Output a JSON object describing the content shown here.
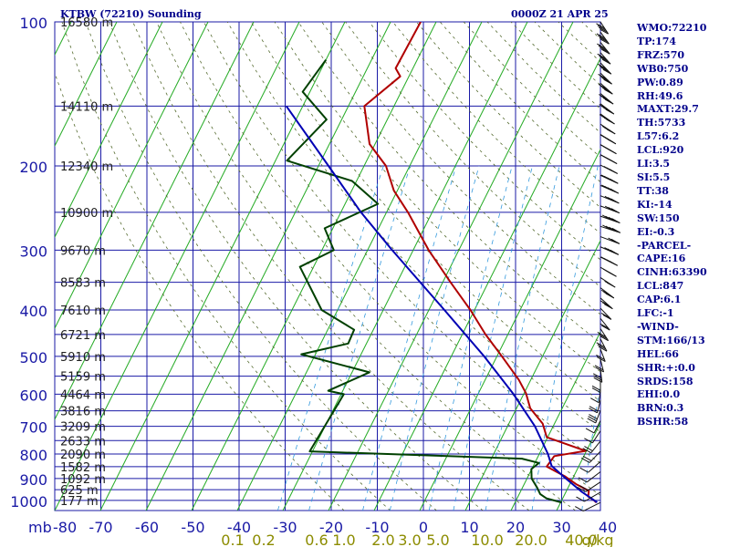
{
  "header": {
    "station_title": "KTBW (72210) Sounding",
    "time_title": "0000Z 21 APR 25"
  },
  "chart_data": {
    "type": "skew-t log-p sounding",
    "x_axis_unit": "C",
    "y_axis_unit": "mb",
    "pressure_ticks": [
      100,
      200,
      300,
      400,
      500,
      600,
      700,
      800,
      900,
      1000
    ],
    "pressure_range": [
      100,
      1050
    ],
    "temperature_ticks": [
      -80,
      -70,
      -60,
      -50,
      -40,
      -30,
      -20,
      -10,
      0,
      10,
      20,
      30,
      40
    ],
    "mixing_ratio_labels": [
      "0.1",
      "0.2",
      "0.6",
      "1.0",
      "2.0",
      "3.0",
      "5.0",
      "10.0",
      "20.0",
      "40.0",
      "g/kg"
    ],
    "height_labels": [
      {
        "p": 100,
        "label": "16580 m"
      },
      {
        "p": 150,
        "label": "14110 m"
      },
      {
        "p": 200,
        "label": "12340 m"
      },
      {
        "p": 250,
        "label": "10900 m"
      },
      {
        "p": 300,
        "label": "9670 m"
      },
      {
        "p": 350,
        "label": "8583 m"
      },
      {
        "p": 400,
        "label": "7610 m"
      },
      {
        "p": 450,
        "label": "6721 m"
      },
      {
        "p": 500,
        "label": "5910 m"
      },
      {
        "p": 550,
        "label": "5159 m"
      },
      {
        "p": 600,
        "label": "4464 m"
      },
      {
        "p": 650,
        "label": "3816 m"
      },
      {
        "p": 700,
        "label": "3209 m"
      },
      {
        "p": 750,
        "label": "2633 m"
      },
      {
        "p": 800,
        "label": "2090 m"
      },
      {
        "p": 850,
        "label": "1582 m"
      },
      {
        "p": 900,
        "label": "1092 m"
      },
      {
        "p": 950,
        "label": "625 m"
      },
      {
        "p": 1000,
        "label": "177 m"
      }
    ],
    "series": [
      {
        "key": "temperature",
        "color": "#b00000",
        "points": [
          [
            1010,
            27.8
          ],
          [
            1000,
            27.1
          ],
          [
            982,
            25.4
          ],
          [
            955,
            24.9
          ],
          [
            925,
            21.4
          ],
          [
            892,
            18.2
          ],
          [
            850,
            13.0
          ],
          [
            808,
            13.5
          ],
          [
            788,
            19.8
          ],
          [
            738,
            9.8
          ],
          [
            691,
            7.4
          ],
          [
            642,
            3.0
          ],
          [
            597,
            0.4
          ],
          [
            560,
            -2.6
          ],
          [
            500,
            -8.9
          ],
          [
            450,
            -14.9
          ],
          [
            400,
            -20.9
          ],
          [
            350,
            -28.3
          ],
          [
            300,
            -36.6
          ],
          [
            250,
            -45.3
          ],
          [
            225,
            -50.8
          ],
          [
            200,
            -55.2
          ],
          [
            180,
            -61.2
          ],
          [
            150,
            -66.5
          ],
          [
            130,
            -61.9
          ],
          [
            125,
            -63.8
          ],
          [
            100,
            -63.4
          ]
        ]
      },
      {
        "key": "dewpoint",
        "color": "#004000",
        "points": [
          [
            1010,
            20.2
          ],
          [
            990,
            16.4
          ],
          [
            970,
            14.6
          ],
          [
            940,
            13.2
          ],
          [
            900,
            11.0
          ],
          [
            860,
            9.9
          ],
          [
            835,
            10.9
          ],
          [
            818,
            6.7
          ],
          [
            790,
            -40.6
          ],
          [
            600,
            -39.4
          ],
          [
            590,
            -43.2
          ],
          [
            540,
            -36.2
          ],
          [
            495,
            -53.1
          ],
          [
            470,
            -44.0
          ],
          [
            440,
            -44.2
          ],
          [
            400,
            -53.5
          ],
          [
            325,
            -63.0
          ],
          [
            300,
            -57.4
          ],
          [
            270,
            -61.8
          ],
          [
            240,
            -52.8
          ],
          [
            215,
            -61.0
          ],
          [
            195,
            -77.5
          ],
          [
            160,
            -73.3
          ],
          [
            140,
            -81.6
          ],
          [
            120,
            -80.0
          ]
        ]
      },
      {
        "key": "parcel",
        "color": "#0000b4",
        "points": [
          [
            1010,
            28.0
          ],
          [
            960,
            23.5
          ],
          [
            900,
            18.5
          ],
          [
            847,
            14.0
          ],
          [
            800,
            11.9
          ],
          [
            700,
            6.0
          ],
          [
            600,
            -2.2
          ],
          [
            500,
            -12.8
          ],
          [
            400,
            -26.6
          ],
          [
            300,
            -44.6
          ],
          [
            250,
            -55.6
          ],
          [
            200,
            -67.8
          ],
          [
            150,
            -83.6
          ]
        ]
      }
    ],
    "wind_barbs": {
      "pressure_min": 100,
      "pressure_max": 1010,
      "count": 48
    }
  },
  "indices": [
    {
      "label": "WMO",
      "value": "72210"
    },
    {
      "label": "TP",
      "value": "174"
    },
    {
      "label": "FRZ",
      "value": "570"
    },
    {
      "label": "WB0",
      "value": "750"
    },
    {
      "label": "PW",
      "value": "0.89"
    },
    {
      "label": "RH",
      "value": "49.6"
    },
    {
      "label": "MAXT",
      "value": "29.7"
    },
    {
      "label": "TH",
      "value": "5733"
    },
    {
      "label": "L57",
      "value": "6.2"
    },
    {
      "label": "LCL",
      "value": "920"
    },
    {
      "label": "LI",
      "value": "3.5"
    },
    {
      "label": "SI",
      "value": "5.5"
    },
    {
      "label": "TT",
      "value": "38"
    },
    {
      "label": "KI",
      "value": "-14"
    },
    {
      "label": "SW",
      "value": "150"
    },
    {
      "label": "EI",
      "value": "-0.3"
    },
    {
      "label": "-PARCEL-",
      "value": ""
    },
    {
      "label": "CAPE",
      "value": "16"
    },
    {
      "label": "CINH",
      "value": "63390"
    },
    {
      "label": "LCL",
      "value": "847"
    },
    {
      "label": "CAP",
      "value": "6.1"
    },
    {
      "label": "LFC",
      "value": "-1"
    },
    {
      "label": "-WIND-",
      "value": ""
    },
    {
      "label": "STM",
      "value": "166/13"
    },
    {
      "label": "HEL",
      "value": "66"
    },
    {
      "label": "SHR",
      "value": "+:0.0"
    },
    {
      "label": "SRDS",
      "value": "158"
    },
    {
      "label": "EHI",
      "value": "0.0"
    },
    {
      "label": "BRN",
      "value": "0.3"
    },
    {
      "label": "BSHR",
      "value": "58"
    }
  ]
}
